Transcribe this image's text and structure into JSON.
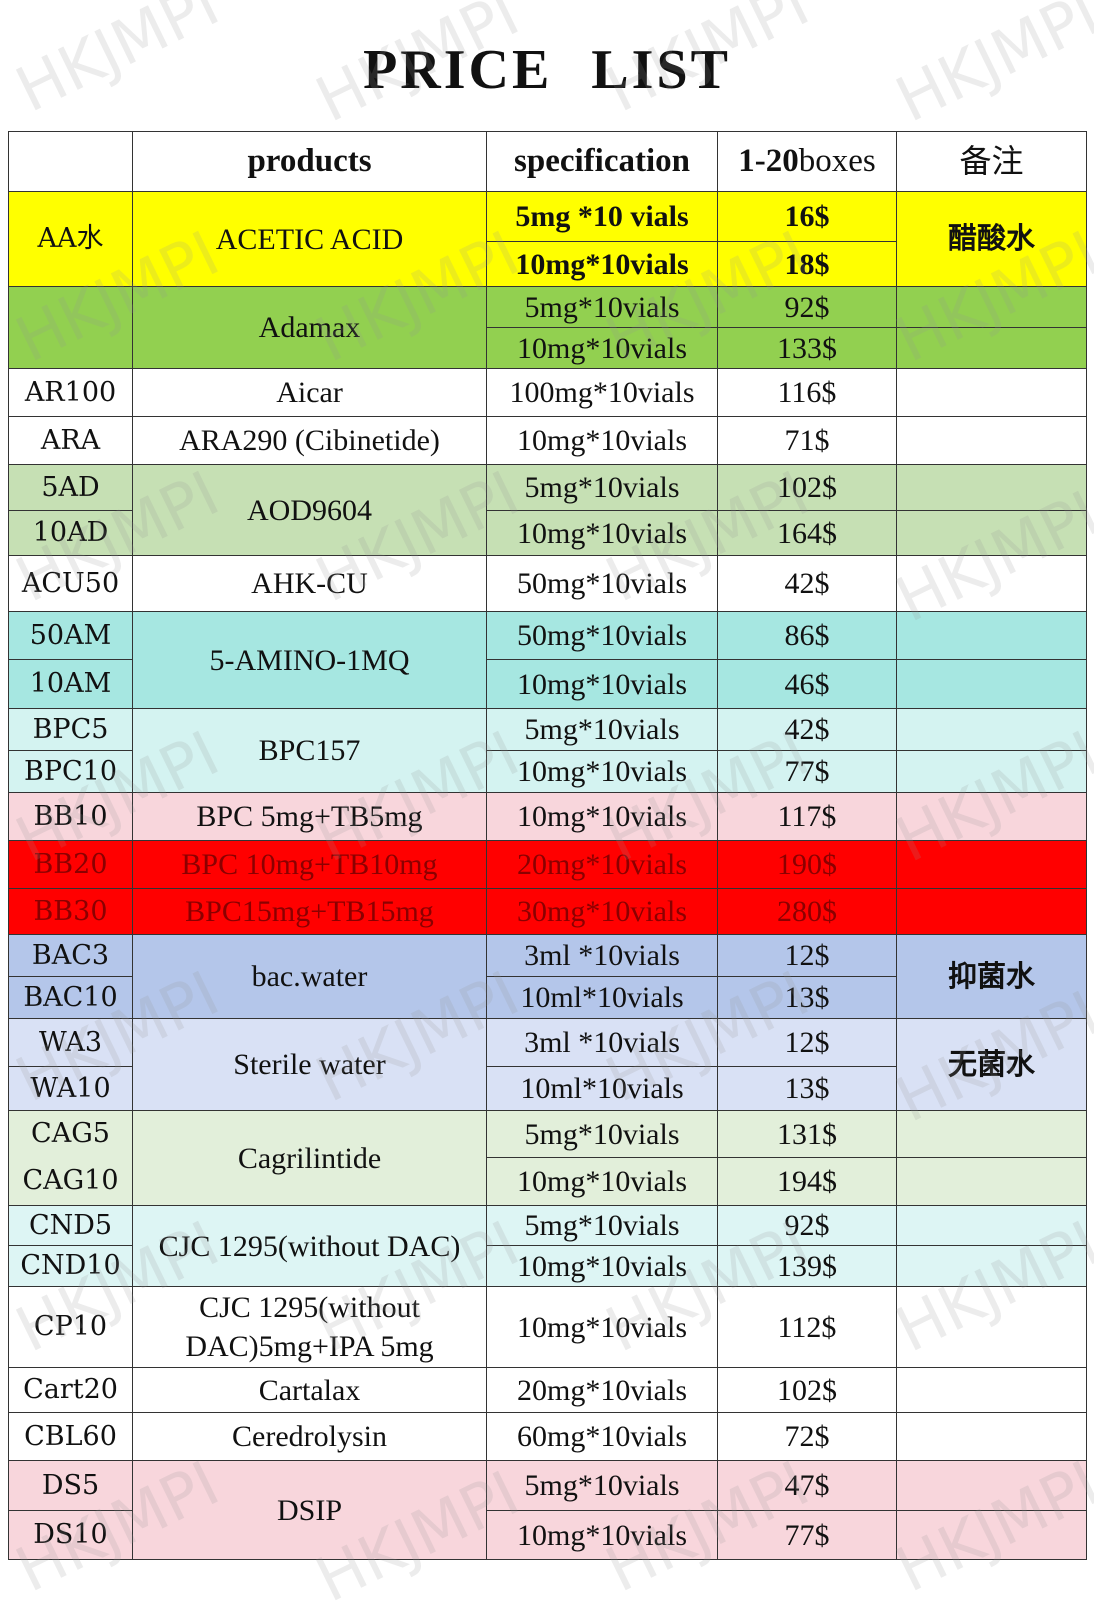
{
  "title": "PRICE  LIST",
  "watermark": "HKJMPI",
  "header": {
    "col_code": "",
    "col_product": "products",
    "col_spec": "specification",
    "col_price_bold": "1-20",
    "col_price_rest": "boxes",
    "col_note": "备注"
  },
  "rows": [
    {
      "code": "AA水",
      "product": "ACETIC  ACID",
      "spec": "5mg *10 vials",
      "price": "16$",
      "note": "醋酸水"
    },
    {
      "spec": "10mg*10vials",
      "price": "18$"
    },
    {
      "code": "",
      "product": "Adamax",
      "spec": "5mg*10vials",
      "price": "92$",
      "note": ""
    },
    {
      "spec": "10mg*10vials",
      "price": "133$",
      "note": ""
    },
    {
      "code": "AR100",
      "product": "Aicar",
      "spec": "100mg*10vials",
      "price": "116$",
      "note": ""
    },
    {
      "code": "ARA",
      "product": "ARA290 (Cibinetide)",
      "spec": "10mg*10vials",
      "price": "71$",
      "note": ""
    },
    {
      "code": "5AD",
      "product": "AOD9604",
      "spec": "5mg*10vials",
      "price": "102$",
      "note": ""
    },
    {
      "code": "10AD",
      "spec": "10mg*10vials",
      "price": "164$",
      "note": ""
    },
    {
      "code": "ACU50",
      "product": "AHK-CU",
      "spec": "50mg*10vials",
      "price": "42$",
      "note": ""
    },
    {
      "code": "50AM",
      "product": "5-AMINO-1MQ",
      "spec": "50mg*10vials",
      "price": "86$",
      "note": ""
    },
    {
      "code": "10AM",
      "spec": "10mg*10vials",
      "price": "46$",
      "note": ""
    },
    {
      "code": "BPC5",
      "product": "BPC157",
      "spec": "5mg*10vials",
      "price": "42$",
      "note": ""
    },
    {
      "code": "BPC10",
      "spec": "10mg*10vials",
      "price": "77$",
      "note": ""
    },
    {
      "code": "BB10",
      "product": "BPC 5mg+TB5mg",
      "spec": "10mg*10vials",
      "price": "117$",
      "note": ""
    },
    {
      "code": "BB20",
      "product": "BPC 10mg+TB10mg",
      "spec": "20mg*10vials",
      "price": "190$",
      "note": ""
    },
    {
      "code": "BB30",
      "product": "BPC15mg+TB15mg",
      "spec": "30mg*10vials",
      "price": "280$",
      "note": ""
    },
    {
      "code": "BAC3",
      "product": "bac.water",
      "spec": "3ml *10vials",
      "price": "12$",
      "note": "抑菌水"
    },
    {
      "code": "BAC10",
      "spec": "10ml*10vials",
      "price": "13$"
    },
    {
      "code": "WA3",
      "product": "Sterile  water",
      "spec": "3ml *10vials",
      "price": "12$",
      "note": "无菌水"
    },
    {
      "code": "WA10",
      "spec": "10ml*10vials",
      "price": "13$"
    },
    {
      "code": "CAG5",
      "product": "Cagrilintide",
      "spec": "5mg*10vials",
      "price": "131$",
      "note": ""
    },
    {
      "code": "CAG10",
      "spec": "10mg*10vials",
      "price": "194$",
      "note": ""
    },
    {
      "code": "CND5",
      "product": "CJC 1295(without DAC)",
      "spec": "5mg*10vials",
      "price": "92$",
      "note": ""
    },
    {
      "code": "CND10",
      "spec": "10mg*10vials",
      "price": "139$",
      "note": ""
    },
    {
      "code": "CP10",
      "product_line1": "CJC 1295(without",
      "product_line2": "DAC)5mg+IPA 5mg",
      "spec": "10mg*10vials",
      "price": "112$",
      "note": ""
    },
    {
      "code": "Cart20",
      "product": "Cartalax",
      "spec": "20mg*10vials",
      "price": "102$",
      "note": ""
    },
    {
      "code": "CBL60",
      "product": "Ceredrolysin",
      "spec": "60mg*10vials",
      "price": "72$",
      "note": ""
    },
    {
      "code": "DS5",
      "product": "DSIP",
      "spec": "5mg*10vials",
      "price": "47$",
      "note": ""
    },
    {
      "code": "DS10",
      "spec": "10mg*10vials",
      "price": "77$",
      "note": ""
    }
  ],
  "colors": {
    "yellow": "#ffff00",
    "green": "#92d050",
    "light_green": "#c6e0b4",
    "teal": "#a6e7e1",
    "light_teal": "#d4f3f1",
    "pink": "#f8d6dc",
    "red": "#ff0000",
    "blue": "#b4c6ea",
    "light_blue": "#d9e1f5",
    "sage": "#e2efda",
    "cyan": "#ddf5f4"
  }
}
